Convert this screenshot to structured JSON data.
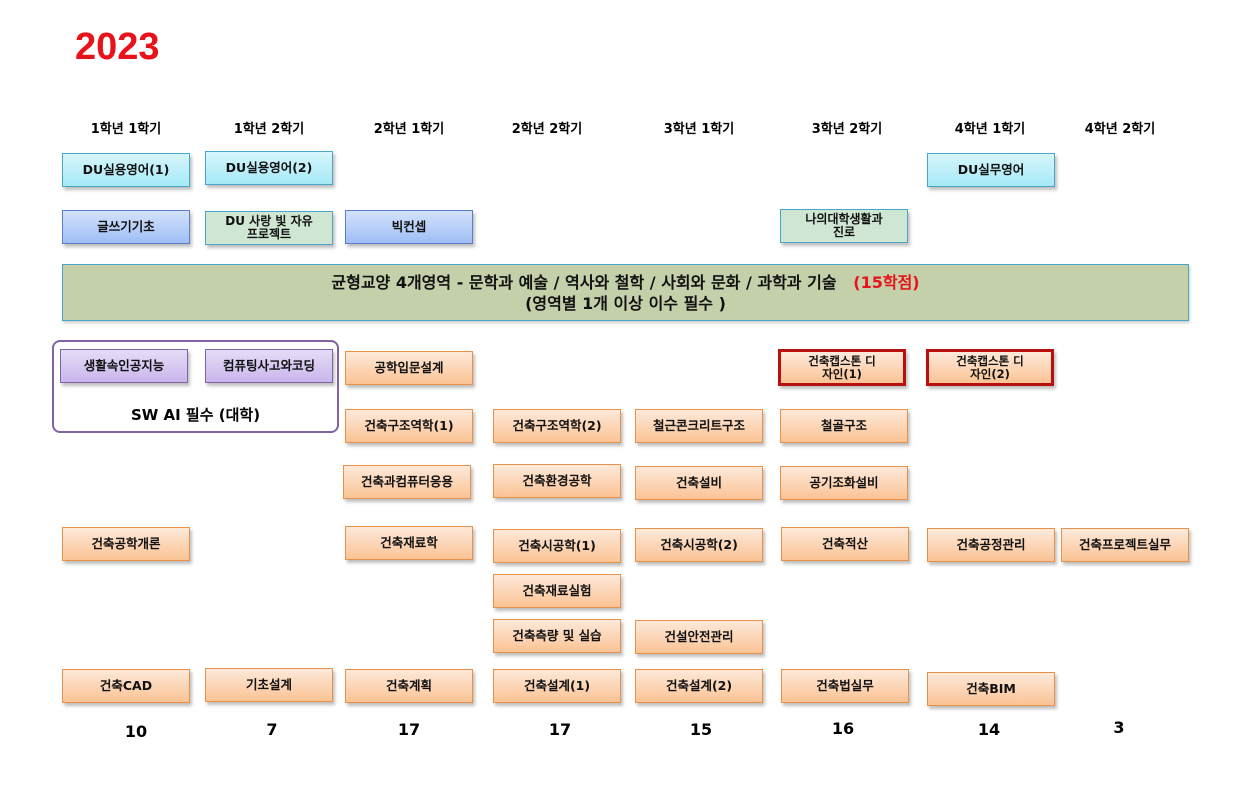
{
  "title": "2023",
  "semesters": [
    "1학년 1학기",
    "1학년 2학기",
    "2학년 1학기",
    "2학년 2학기",
    "3학년 1학기",
    "3학년 2학기",
    "4학년 1학기",
    "4학년 2학기"
  ],
  "liberal": {
    "du_english_1": "DU실용영어(1)",
    "du_english_2": "DU실용영어(2)",
    "du_business_english": "DU실무영어",
    "writing": "글쓰기기초",
    "du_project": "DU 사랑 빛 자유 프로젝트",
    "big_concept": "빅컨셉",
    "college_life": "나의대학생활과 진로"
  },
  "banner": {
    "line1": "균형교양   4개영역   - 문학과 예술 / 역사와 철학 /  사회와 문화 / 과학과 기술",
    "credits": "(15학점)",
    "line2": "(영역별 1개 이상 이수 필수 )"
  },
  "sw_ai": {
    "label": "SW AI 필수 (대학)",
    "course1": "생활속인공지능",
    "course2": "컴퓨팅사고와코딩"
  },
  "major": {
    "intro_design": "공학입문설계",
    "capstone1": "건축캡스톤 디자인(1)",
    "capstone2": "건축캡스톤 디자인(2)",
    "struct1": "건축구조역학(1)",
    "struct2": "건축구조역학(2)",
    "rc": "철근콘크리트구조",
    "steel": "철골구조",
    "computer": "건축과컴퓨터응용",
    "environment": "건축환경공학",
    "equipment": "건축설비",
    "hvac": "공기조화설비",
    "intro_arch": "건축공학개론",
    "materials": "건축재료학",
    "construction1": "건축시공학(1)",
    "construction2": "건축시공학(2)",
    "estimation": "건축적산",
    "process_mgmt": "건축공정관리",
    "project_practice": "건축프로젝트실무",
    "materials_lab": "건축재료실험",
    "surveying": "건축측량 및 실습",
    "safety": "건설안전관리",
    "cad": "건축CAD",
    "basic_design": "기초설계",
    "planning": "건축계획",
    "design1": "건축설계(1)",
    "design2": "건축설계(2)",
    "law": "건축법실무",
    "bim": "건축BIM"
  },
  "totals": [
    "10",
    "7",
    "17",
    "17",
    "15",
    "16",
    "14",
    "3"
  ],
  "colors": {
    "title": "#e8121b",
    "capstone_border": "#b80f0f",
    "banner": "#c4d0a9",
    "orange": "#fbc394",
    "cyan": "#a6e9f7",
    "blue": "#9fbef5",
    "purple": "#c9b6ec",
    "green": "#cfe6d3"
  }
}
